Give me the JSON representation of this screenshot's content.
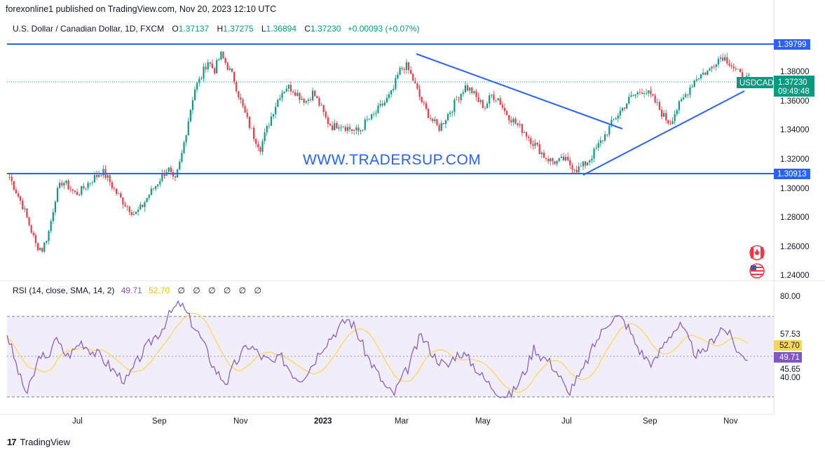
{
  "header": {
    "publish_line": "forexonline1 published on TradingView.com, Nov 20, 2023 12:10 UTC"
  },
  "legend": {
    "symbol": "U.S. Dollar / Canadian Dollar, 1D, FXCM",
    "open_label": "O",
    "open": "1.37137",
    "high_label": "H",
    "high": "1.37275",
    "low_label": "L",
    "low": "1.36894",
    "close_label": "C",
    "close": "1.37230",
    "change": "+0.00093 (+0.07%)"
  },
  "watermark": "WWW.TRADERSUP.COM",
  "price_axis": {
    "ticks": [
      "1.38000",
      "1.36000",
      "1.34000",
      "1.32000",
      "1.30000",
      "1.28000",
      "1.26000",
      "1.24000"
    ],
    "resistance_label": "1.39799",
    "support_label": "1.30913",
    "symbol_badge": "USDCAD",
    "last_price": "1.37230",
    "countdown": "09:49:48"
  },
  "rsi": {
    "title": "RSI (14, close, SMA, 14, 2)",
    "value": "49.71",
    "sma": "52.70",
    "na": [
      "∅",
      "∅",
      "∅",
      "∅",
      "∅",
      "∅"
    ],
    "axis_ticks": [
      "80.00",
      "57.53",
      "45.65",
      "40.00"
    ],
    "badge_sma": "52.70",
    "badge_rsi": "49.71"
  },
  "time_axis": {
    "labels": [
      "Jul",
      "Sep",
      "Nov",
      "2023",
      "Mar",
      "May",
      "Jul",
      "Sep",
      "Nov"
    ]
  },
  "colors": {
    "up": "#089981",
    "down": "#f23645",
    "line": "#2962ff",
    "rsi": "#7e57c2",
    "rsi_sma": "#f7d55c",
    "rsi_band": "#ede7f6"
  },
  "icons": [
    "canada-flag-icon",
    "us-flag-icon"
  ],
  "footer": {
    "brand": "TradingView"
  },
  "chart_data": {
    "type": "candlestick",
    "symbol": "USDCAD",
    "ylim": [
      1.235,
      1.4
    ],
    "horizontal_levels": [
      1.39799,
      1.30913
    ],
    "trendlines": [
      {
        "from": [
          "Mar",
          1.3935
        ],
        "to": [
          "Jul",
          1.3395
        ]
      },
      {
        "from": [
          "Jul",
          1.309
        ],
        "to": [
          "Nov",
          1.3665
        ]
      }
    ],
    "close_path": [
      1.305,
      1.295,
      1.285,
      1.272,
      1.258,
      1.255,
      1.268,
      1.292,
      1.302,
      1.298,
      1.293,
      1.296,
      1.301,
      1.305,
      1.309,
      1.303,
      1.295,
      1.289,
      1.284,
      1.279,
      1.284,
      1.292,
      1.298,
      1.305,
      1.311,
      1.3,
      1.318,
      1.342,
      1.365,
      1.373,
      1.385,
      1.378,
      1.389,
      1.381,
      1.372,
      1.357,
      1.344,
      1.333,
      1.325,
      1.338,
      1.351,
      1.362,
      1.367,
      1.365,
      1.36,
      1.357,
      1.363,
      1.354,
      1.344,
      1.339,
      1.342,
      1.339,
      1.337,
      1.336,
      1.343,
      1.346,
      1.352,
      1.357,
      1.363,
      1.377,
      1.382,
      1.373,
      1.361,
      1.351,
      1.344,
      1.338,
      1.345,
      1.352,
      1.36,
      1.367,
      1.364,
      1.357,
      1.353,
      1.361,
      1.359,
      1.35,
      1.345,
      1.34,
      1.336,
      1.33,
      1.325,
      1.319,
      1.316,
      1.315,
      1.317,
      1.313,
      1.31,
      1.313,
      1.318,
      1.325,
      1.332,
      1.34,
      1.347,
      1.353,
      1.359,
      1.362,
      1.365,
      1.361,
      1.355,
      1.347,
      1.342,
      1.351,
      1.358,
      1.366,
      1.373,
      1.376,
      1.378,
      1.385,
      1.388,
      1.384,
      1.378,
      1.373,
      1.372
    ],
    "rsi_path": [
      62,
      50,
      38,
      30,
      40,
      52,
      46,
      60,
      55,
      50,
      53,
      58,
      55,
      52,
      50,
      46,
      42,
      39,
      37,
      44,
      50,
      55,
      60,
      63,
      70,
      75,
      78,
      72,
      66,
      60,
      52,
      44,
      39,
      36,
      45,
      50,
      56,
      54,
      50,
      48,
      46,
      50,
      45,
      40,
      38,
      42,
      47,
      54,
      58,
      62,
      66,
      70,
      66,
      58,
      50,
      44,
      38,
      32,
      30,
      37,
      43,
      52,
      61,
      56,
      50,
      47,
      44,
      50,
      52,
      49,
      45,
      40,
      36,
      33,
      30,
      28,
      32,
      38,
      45,
      55,
      50,
      48,
      44,
      38,
      30,
      36,
      40,
      48,
      56,
      62,
      68,
      71,
      70,
      66,
      58,
      52,
      48,
      46,
      54,
      60,
      64,
      66,
      59,
      52,
      50,
      55,
      60,
      65,
      63,
      56,
      50,
      49.71
    ],
    "rsi_levels": [
      70,
      50,
      30
    ]
  }
}
